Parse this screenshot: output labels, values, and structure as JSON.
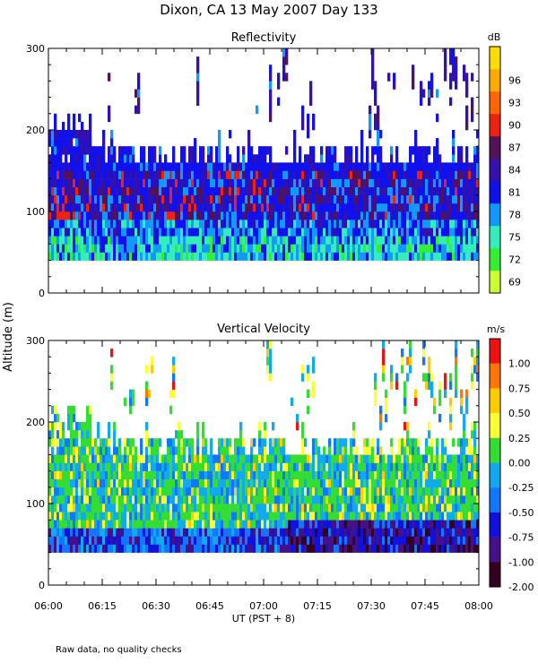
{
  "title": "Dixon, CA 13 May 2007  Day 133",
  "ylabel": "Altitude (m)",
  "xlabel": "UT  (PST + 8)",
  "footer": "Raw data, no quality checks",
  "xticks": [
    "06:00",
    "06:15",
    "06:30",
    "06:45",
    "07:00",
    "07:15",
    "07:30",
    "07:45",
    "08:00"
  ],
  "chart_data": [
    {
      "type": "heatmap",
      "title": "Reflectivity",
      "units": "dB",
      "xlim": [
        "06:00",
        "08:00"
      ],
      "ylim": [
        0,
        300
      ],
      "yticks": [
        0,
        100,
        200,
        300
      ],
      "data_altitude_range_m": [
        40,
        300
      ],
      "colorbar": {
        "labels": [
          "69",
          "72",
          "75",
          "78",
          "81",
          "84",
          "87",
          "90",
          "93",
          "96"
        ],
        "colors": [
          "#ccff33",
          "#33ee33",
          "#33eebb",
          "#1199ff",
          "#1111ee",
          "#3311aa",
          "#551155",
          "#ee2211",
          "#ff6600",
          "#ffaa00",
          "#ffdd00"
        ]
      },
      "description": "Dense echoes 40-200 m, strongest (87-93 dB) near 90-140 m; sparse echoes to 300 m"
    },
    {
      "type": "heatmap",
      "title": "Vertical Velocity",
      "units": "m/s",
      "xlim": [
        "06:00",
        "08:00"
      ],
      "ylim": [
        0,
        300
      ],
      "yticks": [
        0,
        100,
        200,
        300
      ],
      "data_altitude_range_m": [
        40,
        300
      ],
      "colorbar": {
        "labels": [
          "1.00",
          "0.75",
          "0.50",
          "0.25",
          "0.00",
          "-0.25",
          "-0.50",
          "-0.75",
          "-1.00",
          "-2.00"
        ],
        "colors": [
          "#ee1111",
          "#ff7700",
          "#ffcc00",
          "#ffff33",
          "#33dd33",
          "#11aaee",
          "#1177ff",
          "#1111dd",
          "#441188",
          "#330022"
        ]
      },
      "description": "Mostly -0.5 to +0.25 m/s; strong downward (-1 to -2 m/s) near 40-80 m after 07:20"
    }
  ]
}
